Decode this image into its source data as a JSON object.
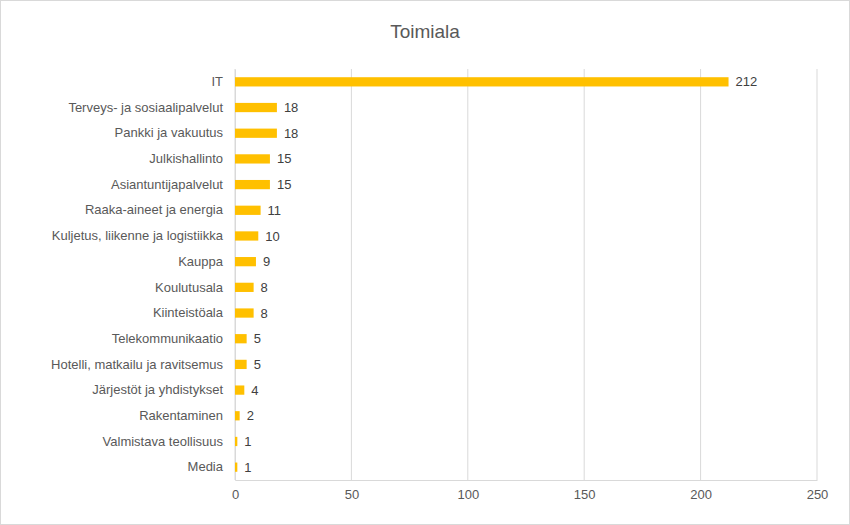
{
  "chart_data": {
    "type": "bar",
    "orientation": "horizontal",
    "title": "Toimiala",
    "categories": [
      "IT",
      "Terveys- ja sosiaalipalvelut",
      "Pankki ja vakuutus",
      "Julkishallinto",
      "Asiantuntijapalvelut",
      "Raaka-aineet ja energia",
      "Kuljetus, liikenne ja logistiikka",
      "Kauppa",
      "Koulutusala",
      "Kiinteistöala",
      "Telekommunikaatio",
      "Hotelli, matkailu ja ravitsemus",
      "Järjestöt ja yhdistykset",
      "Rakentaminen",
      "Valmistava teollisuus",
      "Media"
    ],
    "values": [
      212,
      18,
      18,
      15,
      15,
      11,
      10,
      9,
      8,
      8,
      5,
      5,
      4,
      2,
      1,
      1
    ],
    "color": "#ffc000",
    "xlim": [
      0,
      250
    ],
    "xticks": [
      0,
      50,
      100,
      150,
      200,
      250
    ],
    "grid": true,
    "data_labels": true
  }
}
